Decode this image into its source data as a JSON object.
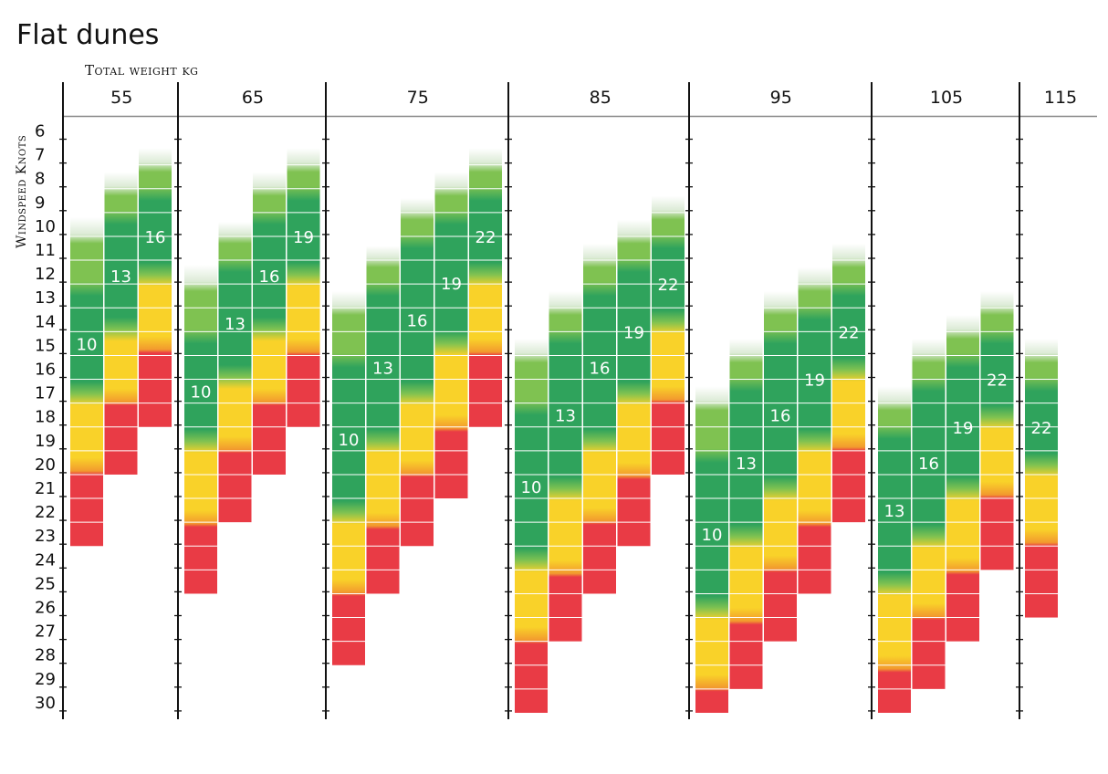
{
  "chart_data": {
    "type": "heatmap",
    "title": "Flat dunes",
    "xlabel": "Total weight kg",
    "ylabel": "Windspeed Knots",
    "weights": [
      "55",
      "65",
      "75",
      "85",
      "95",
      "105",
      "115"
    ],
    "wind_range": [
      6,
      30
    ],
    "wind_ticks": [
      "6",
      "7",
      "8",
      "9",
      "10",
      "11",
      "12",
      "13",
      "14",
      "15",
      "16",
      "17",
      "18",
      "19",
      "20",
      "21",
      "22",
      "23",
      "24",
      "25",
      "26",
      "27",
      "28",
      "29",
      "30"
    ],
    "colors": {
      "fade": "#dcebd6",
      "light_green": "#7fc251",
      "green": "#2fa35c",
      "yellow": "#f9d229",
      "orange": "#f29a2e",
      "red": "#e93b45",
      "grid": "#ffffff",
      "axis": "#111111"
    },
    "bars": [
      {
        "weight": "55",
        "kite": "10",
        "top": 9.7,
        "lg": 10.5,
        "green": 12.5,
        "y": 17.5,
        "red": 20.5,
        "end": 23.5
      },
      {
        "weight": "55",
        "kite": "13",
        "top": 7.8,
        "lg": 8.5,
        "green": 9.5,
        "y": 14.8,
        "red": 17.6,
        "end": 20.5
      },
      {
        "weight": "55",
        "kite": "16",
        "top": 6.8,
        "lg": 7.5,
        "green": 8.5,
        "y": 12.5,
        "red": 15.4,
        "end": 18.5
      },
      {
        "weight": "65",
        "kite": "10",
        "top": 11.7,
        "lg": 12.5,
        "green": 14.5,
        "y": 19.5,
        "red": 22.7,
        "end": 25.5
      },
      {
        "weight": "65",
        "kite": "13",
        "top": 9.9,
        "lg": 10.5,
        "green": 11.5,
        "y": 16.8,
        "red": 19.6,
        "end": 22.5
      },
      {
        "weight": "65",
        "kite": "16",
        "top": 7.8,
        "lg": 8.5,
        "green": 9.5,
        "y": 14.8,
        "red": 17.6,
        "end": 20.5
      },
      {
        "weight": "65",
        "kite": "19",
        "top": 6.8,
        "lg": 7.5,
        "green": 8.5,
        "y": 12.5,
        "red": 15.5,
        "end": 18.5
      },
      {
        "weight": "75",
        "kite": "10",
        "top": 12.8,
        "lg": 13.5,
        "green": 15.5,
        "y": 22.5,
        "red": 25.6,
        "end": 28.5
      },
      {
        "weight": "75",
        "kite": "13",
        "top": 10.9,
        "lg": 11.5,
        "green": 12.5,
        "y": 19.5,
        "red": 22.8,
        "end": 25.5
      },
      {
        "weight": "75",
        "kite": "16",
        "top": 8.9,
        "lg": 9.5,
        "green": 10.5,
        "y": 17.5,
        "red": 20.6,
        "end": 23.5
      },
      {
        "weight": "75",
        "kite": "19",
        "top": 7.8,
        "lg": 8.5,
        "green": 9.5,
        "y": 15.4,
        "red": 18.7,
        "end": 21.5
      },
      {
        "weight": "75",
        "kite": "22",
        "top": 6.8,
        "lg": 7.5,
        "green": 8.5,
        "y": 12.5,
        "red": 15.5,
        "end": 18.5
      },
      {
        "weight": "85",
        "kite": "10",
        "top": 14.8,
        "lg": 15.5,
        "green": 17.5,
        "y": 24.5,
        "red": 27.6,
        "end": 30.5
      },
      {
        "weight": "85",
        "kite": "13",
        "top": 12.8,
        "lg": 13.5,
        "green": 14.5,
        "y": 21.5,
        "red": 24.8,
        "end": 27.5
      },
      {
        "weight": "85",
        "kite": "16",
        "top": 10.8,
        "lg": 11.5,
        "green": 12.5,
        "y": 19.5,
        "red": 22.6,
        "end": 25.5
      },
      {
        "weight": "85",
        "kite": "19",
        "top": 9.8,
        "lg": 10.5,
        "green": 11.5,
        "y": 17.5,
        "red": 20.7,
        "end": 23.5
      },
      {
        "weight": "85",
        "kite": "22",
        "top": 8.8,
        "lg": 9.5,
        "green": 10.5,
        "y": 14.5,
        "red": 17.5,
        "end": 20.5
      },
      {
        "weight": "95",
        "kite": "10",
        "top": 16.8,
        "lg": 17.5,
        "green": 19.5,
        "y": 26.5,
        "red": 29.6,
        "end": 30.5
      },
      {
        "weight": "95",
        "kite": "13",
        "top": 14.8,
        "lg": 15.5,
        "green": 16.5,
        "y": 23.5,
        "red": 26.8,
        "end": 29.5
      },
      {
        "weight": "95",
        "kite": "16",
        "top": 12.8,
        "lg": 13.5,
        "green": 14.5,
        "y": 21.5,
        "red": 24.6,
        "end": 27.5
      },
      {
        "weight": "95",
        "kite": "19",
        "top": 11.8,
        "lg": 12.5,
        "green": 13.5,
        "y": 19.5,
        "red": 22.7,
        "end": 25.5
      },
      {
        "weight": "95",
        "kite": "22",
        "top": 10.8,
        "lg": 11.5,
        "green": 12.5,
        "y": 16.5,
        "red": 19.5,
        "end": 22.5
      },
      {
        "weight": "105",
        "kite": "13",
        "top": 16.8,
        "lg": 17.5,
        "green": 18.5,
        "y": 25.5,
        "red": 28.8,
        "end": 30.5
      },
      {
        "weight": "105",
        "kite": "16",
        "top": 14.8,
        "lg": 15.5,
        "green": 16.5,
        "y": 23.5,
        "red": 26.6,
        "end": 29.5
      },
      {
        "weight": "105",
        "kite": "19",
        "top": 13.8,
        "lg": 14.5,
        "green": 15.5,
        "y": 21.5,
        "red": 24.7,
        "end": 27.5
      },
      {
        "weight": "105",
        "kite": "22",
        "top": 12.8,
        "lg": 13.5,
        "green": 14.5,
        "y": 18.5,
        "red": 21.5,
        "end": 24.5
      },
      {
        "weight": "115",
        "kite": "22",
        "top": 14.8,
        "lg": 15.5,
        "green": 16.5,
        "y": 20.5,
        "red": 23.5,
        "end": 26.5
      }
    ]
  }
}
